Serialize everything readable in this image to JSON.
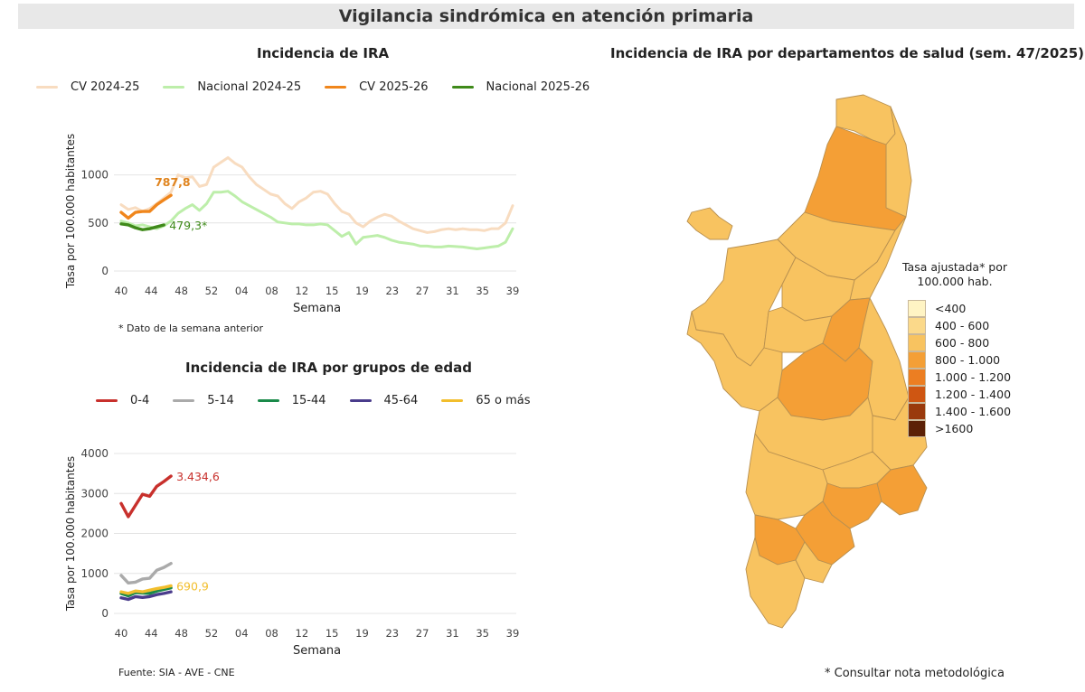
{
  "page": {
    "banner": "Vigilancia sindrómica en atención primaria",
    "source": "Fuente: SIA - AVE - CNE",
    "method_note": "* Consultar nota metodológica"
  },
  "chart_data": [
    {
      "type": "line",
      "title": "Incidencia de IRA",
      "xlabel": "Semana",
      "ylabel": "Tasa por 100.000 habitantes",
      "ylim": [
        0,
        1200
      ],
      "yticks": [
        0,
        500,
        1000
      ],
      "x_tick_labels": [
        "40",
        "44",
        "48",
        "52",
        "04",
        "08",
        "12",
        "15",
        "19",
        "23",
        "27",
        "31",
        "35",
        "39"
      ],
      "legend_position": "top",
      "note": "* Dato de la semana anterior",
      "annotations": [
        {
          "text": "787,8",
          "series": "CV 2025-26",
          "color": "#e0841e"
        },
        {
          "text": "479,3*",
          "series": "Nacional 2025-26",
          "color": "#3f8a1a"
        }
      ],
      "series": [
        {
          "name": "CV 2024-25",
          "color": "#f8dcc0",
          "values": [
            690,
            640,
            660,
            620,
            650,
            700,
            760,
            820,
            1000,
            970,
            980,
            880,
            900,
            1080,
            1130,
            1180,
            1120,
            1080,
            980,
            900,
            850,
            800,
            780,
            700,
            650,
            720,
            760,
            820,
            830,
            800,
            700,
            620,
            590,
            500,
            460,
            520,
            560,
            590,
            570,
            520,
            480,
            440,
            420,
            400,
            410,
            430,
            440,
            430,
            440,
            430,
            430,
            420,
            440,
            440,
            500,
            680
          ]
        },
        {
          "name": "Nacional 2024-25",
          "color": "#bdeeaa",
          "values": [
            520,
            500,
            470,
            480,
            460,
            440,
            470,
            520,
            600,
            650,
            690,
            630,
            700,
            820,
            820,
            830,
            780,
            720,
            680,
            640,
            600,
            560,
            510,
            500,
            490,
            490,
            480,
            480,
            490,
            480,
            420,
            360,
            400,
            280,
            350,
            360,
            370,
            350,
            320,
            300,
            290,
            280,
            260,
            260,
            250,
            250,
            260,
            255,
            250,
            240,
            230,
            240,
            250,
            260,
            300,
            440
          ]
        },
        {
          "name": "CV 2025-26",
          "color": "#f0861c",
          "values": [
            610,
            550,
            610,
            620,
            620,
            690,
            740,
            787.8
          ]
        },
        {
          "name": "Nacional 2025-26",
          "color": "#3f8a1a",
          "values": [
            490,
            480,
            450,
            430,
            440,
            460,
            479.3
          ]
        }
      ]
    },
    {
      "type": "line",
      "title": "Incidencia de IRA por grupos de edad",
      "xlabel": "Semana",
      "ylabel": "Tasa por 100.000 habitantes",
      "ylim": [
        0,
        4000
      ],
      "yticks": [
        0,
        1000,
        2000,
        3000,
        4000
      ],
      "x_tick_labels": [
        "40",
        "44",
        "48",
        "52",
        "04",
        "08",
        "12",
        "15",
        "19",
        "23",
        "27",
        "31",
        "35",
        "39"
      ],
      "legend_position": "top",
      "annotations": [
        {
          "text": "3.434,6",
          "series": "0-4",
          "color": "#c8302c"
        },
        {
          "text": "690,9",
          "series": "65 o más",
          "color": "#f2be2c"
        }
      ],
      "series": [
        {
          "name": "0-4",
          "color": "#c8302c",
          "values": [
            2750,
            2420,
            2700,
            2980,
            2930,
            3180,
            3300,
            3434.6
          ]
        },
        {
          "name": "5-14",
          "color": "#aaaaaa",
          "values": [
            950,
            760,
            780,
            860,
            880,
            1080,
            1150,
            1250
          ]
        },
        {
          "name": "15-44",
          "color": "#1a8a4a",
          "values": [
            500,
            440,
            520,
            510,
            500,
            560,
            600,
            640
          ]
        },
        {
          "name": "45-64",
          "color": "#4a3c8c",
          "values": [
            390,
            350,
            420,
            400,
            420,
            470,
            500,
            540
          ]
        },
        {
          "name": "65 o más",
          "color": "#f2be2c",
          "values": [
            540,
            500,
            560,
            540,
            580,
            620,
            650,
            690.9
          ]
        }
      ]
    },
    {
      "type": "map",
      "title": "Incidencia de IRA por departamentos de salud (sem. 47/2025)",
      "legend_title": "Tasa ajustada* por 100.000 hab.",
      "legend_position": "right",
      "classes": [
        {
          "label": "<400",
          "color": "#fff4c4"
        },
        {
          "label": "400 - 600",
          "color": "#fbd98a"
        },
        {
          "label": "600 - 800",
          "color": "#f8c360"
        },
        {
          "label": "800 - 1.000",
          "color": "#f49f36"
        },
        {
          "label": "1.000 - 1.200",
          "color": "#ec7e22"
        },
        {
          "label": "1.200 - 1.400",
          "color": "#cf5612"
        },
        {
          "label": "1.400 - 1.600",
          "color": "#9a3a0c"
        },
        {
          "label": ">1600",
          "color": "#5c2106"
        }
      ]
    }
  ]
}
